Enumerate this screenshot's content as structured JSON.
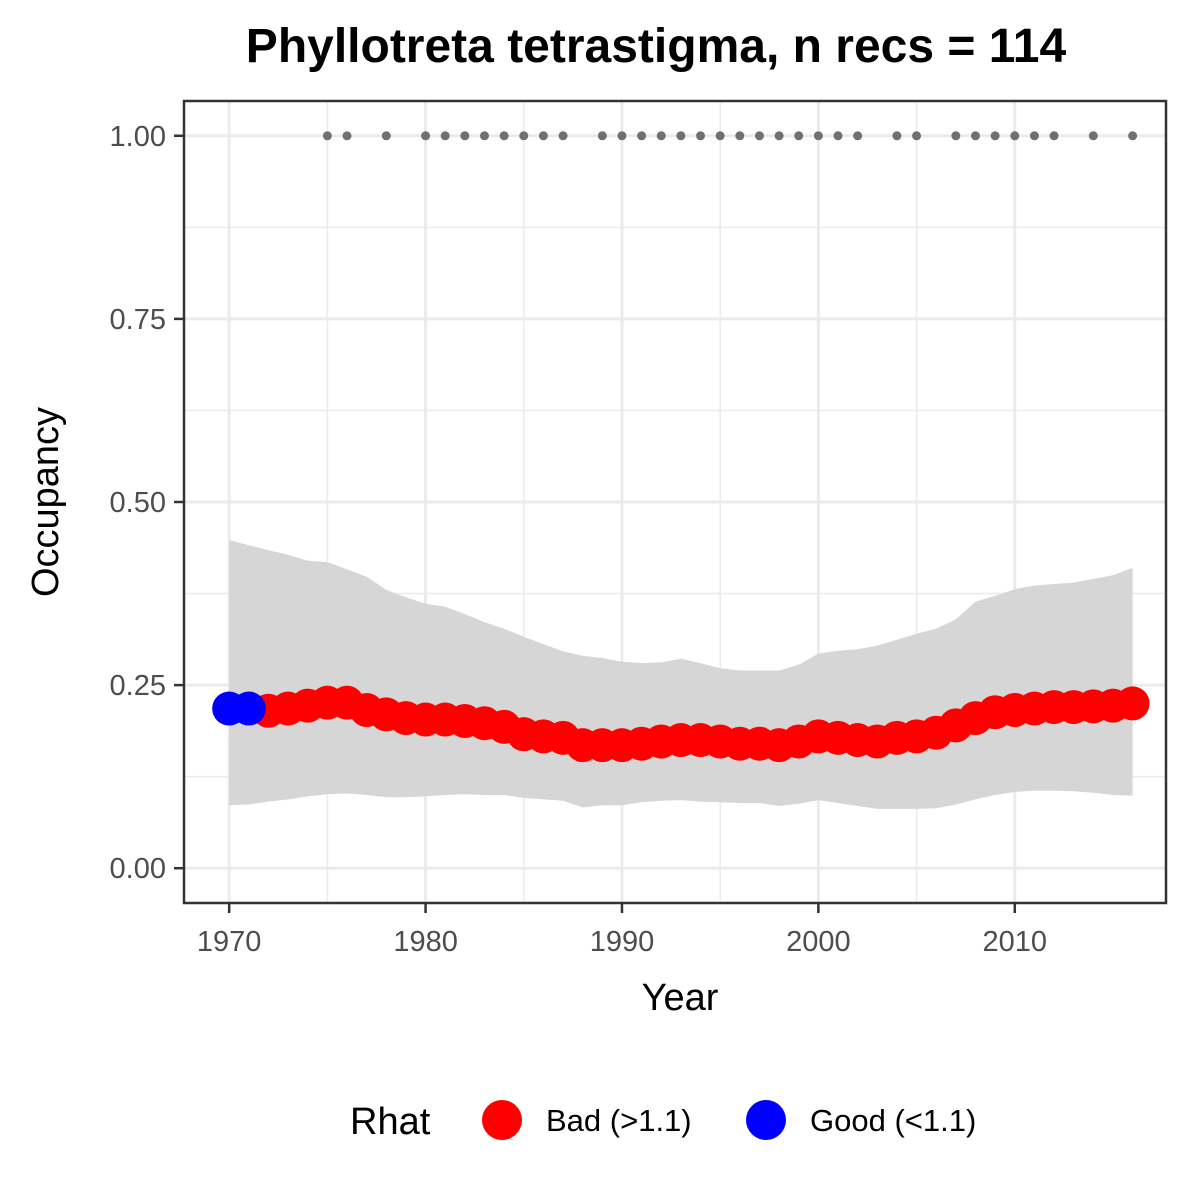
{
  "chart_data": {
    "type": "line",
    "title": "Phyllotreta tetrastigma, n recs = 114",
    "xlabel": "Year",
    "ylabel": "Occupancy",
    "xlim": [
      1967.7,
      2017.7
    ],
    "ylim": [
      -0.0475,
      1.0475
    ],
    "x_ticks": [
      1970,
      1980,
      1990,
      2000,
      2010
    ],
    "x_tick_labels": [
      "1970",
      "1980",
      "1990",
      "2000",
      "2010"
    ],
    "y_ticks": [
      0,
      0.25,
      0.5,
      0.75,
      1.0
    ],
    "y_tick_labels": [
      "0.00",
      "0.25",
      "0.50",
      "0.75",
      "1.00"
    ],
    "grid": true,
    "legend_position": "bottom",
    "legend": {
      "title": "Rhat",
      "entries": [
        {
          "label": "Bad (>1.1)",
          "color": "#ff0000"
        },
        {
          "label": "Good (<1.1)",
          "color": "#0000ff"
        }
      ]
    },
    "colors": {
      "bad": "#ff0000",
      "good": "#0000ff",
      "ribbon": "#d6d6d6",
      "records": "#707070",
      "grid": "#ebebeb",
      "panel_border": "#333333"
    },
    "years": [
      1970,
      1971,
      1972,
      1973,
      1974,
      1975,
      1976,
      1977,
      1978,
      1979,
      1980,
      1981,
      1982,
      1983,
      1984,
      1985,
      1986,
      1987,
      1988,
      1989,
      1990,
      1991,
      1992,
      1993,
      1994,
      1995,
      1996,
      1997,
      1998,
      1999,
      2000,
      2001,
      2002,
      2003,
      2004,
      2005,
      2006,
      2007,
      2008,
      2009,
      2010,
      2011,
      2012,
      2013,
      2014,
      2015,
      2016
    ],
    "occupancy": [
      0.218,
      0.218,
      0.215,
      0.218,
      0.222,
      0.226,
      0.226,
      0.216,
      0.21,
      0.205,
      0.203,
      0.203,
      0.201,
      0.198,
      0.193,
      0.183,
      0.18,
      0.178,
      0.168,
      0.168,
      0.168,
      0.17,
      0.173,
      0.175,
      0.175,
      0.173,
      0.17,
      0.17,
      0.168,
      0.173,
      0.18,
      0.178,
      0.175,
      0.173,
      0.178,
      0.18,
      0.185,
      0.195,
      0.205,
      0.213,
      0.216,
      0.218,
      0.22,
      0.22,
      0.221,
      0.222,
      0.225
    ],
    "rhat": [
      "good",
      "good",
      "bad",
      "bad",
      "bad",
      "bad",
      "bad",
      "bad",
      "bad",
      "bad",
      "bad",
      "bad",
      "bad",
      "bad",
      "bad",
      "bad",
      "bad",
      "bad",
      "bad",
      "bad",
      "bad",
      "bad",
      "bad",
      "bad",
      "bad",
      "bad",
      "bad",
      "bad",
      "bad",
      "bad",
      "bad",
      "bad",
      "bad",
      "bad",
      "bad",
      "bad",
      "bad",
      "bad",
      "bad",
      "bad",
      "bad",
      "bad",
      "bad",
      "bad",
      "bad",
      "bad",
      "bad"
    ],
    "lower": [
      0.086,
      0.087,
      0.091,
      0.094,
      0.098,
      0.101,
      0.102,
      0.1,
      0.097,
      0.097,
      0.098,
      0.1,
      0.101,
      0.1,
      0.1,
      0.096,
      0.094,
      0.092,
      0.083,
      0.086,
      0.086,
      0.09,
      0.092,
      0.093,
      0.091,
      0.09,
      0.089,
      0.089,
      0.085,
      0.088,
      0.093,
      0.089,
      0.085,
      0.081,
      0.081,
      0.081,
      0.082,
      0.087,
      0.094,
      0.1,
      0.104,
      0.106,
      0.106,
      0.105,
      0.103,
      0.1,
      0.099
    ],
    "upper": [
      0.448,
      0.441,
      0.434,
      0.428,
      0.42,
      0.418,
      0.408,
      0.398,
      0.38,
      0.37,
      0.361,
      0.357,
      0.347,
      0.336,
      0.327,
      0.316,
      0.306,
      0.296,
      0.29,
      0.287,
      0.282,
      0.28,
      0.281,
      0.286,
      0.28,
      0.273,
      0.27,
      0.27,
      0.27,
      0.278,
      0.293,
      0.297,
      0.299,
      0.304,
      0.312,
      0.32,
      0.327,
      0.34,
      0.364,
      0.372,
      0.381,
      0.386,
      0.388,
      0.39,
      0.395,
      0.4,
      0.41
    ],
    "record_years": [
      1975,
      1976,
      1978,
      1980,
      1981,
      1982,
      1983,
      1984,
      1985,
      1986,
      1987,
      1989,
      1990,
      1991,
      1992,
      1993,
      1994,
      1995,
      1996,
      1997,
      1998,
      1999,
      2000,
      2001,
      2002,
      2004,
      2005,
      2007,
      2008,
      2009,
      2010,
      2011,
      2012,
      2014,
      2016
    ],
    "record_value": 1.0
  }
}
